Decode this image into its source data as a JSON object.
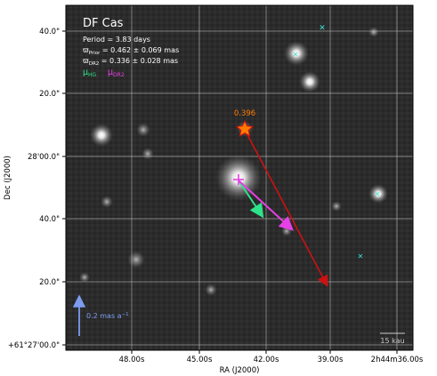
{
  "object_name": "DF Cas",
  "info": {
    "period": "Period =   3.83 days",
    "prior_symbol": "ϖ",
    "prior_sub": "Prior",
    "prior_value": " = 0.462 ± 0.069 mas",
    "dr2_symbol": "ϖ",
    "dr2_sub": "DR2",
    "dr2_value": " = 0.336 ± 0.028 mas",
    "legend_hg_symbol": "μ",
    "legend_hg_sub": "HG",
    "legend_dr2_symbol": "μ",
    "legend_dr2_sub": "DR2"
  },
  "marker_label": "0.396",
  "scale_arrow_label": "0.2 mas a",
  "scale_arrow_exp": "−1",
  "scalebar_label": "15 kau",
  "axes": {
    "xlabel": "RA (J2000)",
    "ylabel": "Dec (J2000)",
    "xticks": [
      "48.00s",
      "45.00s",
      "42.00s",
      "39.00s",
      "2h44m36.00s"
    ],
    "yticks": [
      "40.0\"",
      "20.0\"",
      "28'00.0\"",
      "40.0\"",
      "20.0\"",
      "+61°27'00.0\""
    ]
  },
  "colors": {
    "hg": "#2ee38a",
    "dr2": "#e640e6",
    "red_arrow": "#cc1111",
    "marker": "#ff7a00",
    "scale_arrow": "#7d9cf0",
    "companion": "#40e0d0"
  }
}
